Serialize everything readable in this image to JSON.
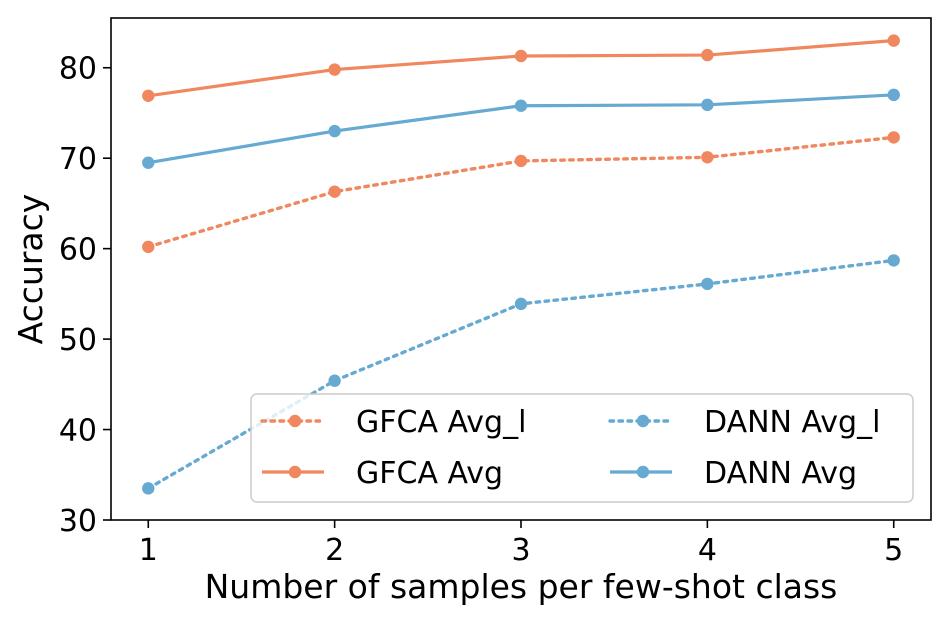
{
  "chart_data": {
    "type": "line",
    "title": "",
    "xlabel": "Number of samples per few-shot class",
    "ylabel": "Accuracy",
    "x": [
      1,
      2,
      3,
      4,
      5
    ],
    "x_ticks": [
      "1",
      "2",
      "3",
      "4",
      "5"
    ],
    "xlim": [
      0.8,
      5.2
    ],
    "ylim": [
      30,
      85.5
    ],
    "y_ticks": [
      "30",
      "40",
      "50",
      "60",
      "70",
      "80"
    ],
    "y_tick_values": [
      30,
      40,
      50,
      60,
      70,
      80
    ],
    "grid": false,
    "legend_position": "lower-right",
    "legend_columns": 2,
    "series": [
      {
        "name": "GFCA Avg_l",
        "values": [
          60.2,
          66.3,
          69.7,
          70.1,
          72.3
        ],
        "color": "#f0875f",
        "linestyle": "dotted",
        "marker": "circle"
      },
      {
        "name": "GFCA Avg",
        "values": [
          76.9,
          79.8,
          81.3,
          81.4,
          83.0
        ],
        "color": "#f0875f",
        "linestyle": "solid",
        "marker": "circle"
      },
      {
        "name": "DANN Avg_l",
        "values": [
          33.5,
          45.4,
          53.9,
          56.1,
          58.7
        ],
        "color": "#66a9d1",
        "linestyle": "dotted",
        "marker": "circle"
      },
      {
        "name": "DANN Avg",
        "values": [
          69.5,
          73.0,
          75.8,
          75.9,
          77.0
        ],
        "color": "#66a9d1",
        "linestyle": "solid",
        "marker": "circle"
      }
    ]
  }
}
